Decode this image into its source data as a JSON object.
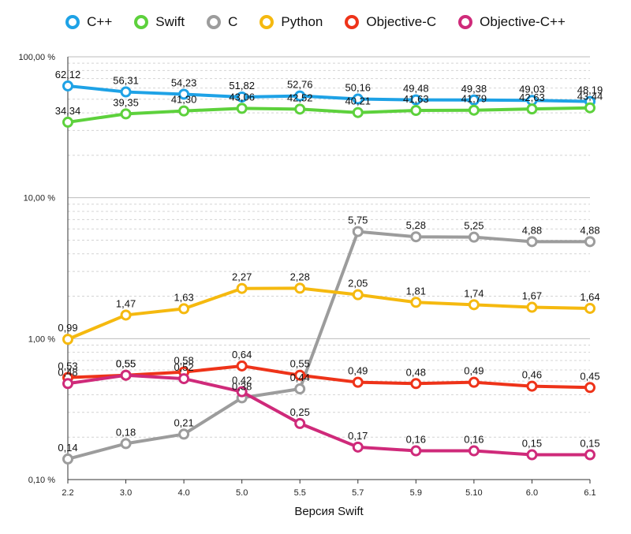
{
  "chart_data": {
    "type": "line",
    "title": "",
    "xlabel": "Версия Swift",
    "ylabel": "",
    "y_scale": "log",
    "ylim": [
      0.1,
      100
    ],
    "y_ticks": [
      {
        "value": 100,
        "label": "100,00 %"
      },
      {
        "value": 10,
        "label": "10,00 %"
      },
      {
        "value": 1,
        "label": "1,00 %"
      },
      {
        "value": 0.1,
        "label": "0,10 %"
      }
    ],
    "grid": true,
    "legend_position": "top",
    "categories": [
      "2.2",
      "3.0",
      "4.0",
      "5.0",
      "5.5",
      "5.7",
      "5.9",
      "5.10",
      "6.0",
      "6.1"
    ],
    "series": [
      {
        "name": "C++",
        "color": "#1ea2e6",
        "values": [
          62.12,
          56.31,
          54.23,
          51.82,
          52.76,
          50.16,
          49.48,
          49.38,
          49.03,
          48.19
        ],
        "labels": [
          "62,12",
          "56,31",
          "54,23",
          "51,82",
          "52,76",
          "50,16",
          "49,48",
          "49,38",
          "49,03",
          "48,19"
        ]
      },
      {
        "name": "Swift",
        "color": "#5dd13c",
        "values": [
          34.34,
          39.35,
          41.3,
          43.06,
          42.52,
          40.21,
          41.63,
          41.79,
          42.63,
          43.44
        ],
        "labels": [
          "34,34",
          "39,35",
          "41,30",
          "43,06",
          "42,52",
          "40,21",
          "41,63",
          "41,79",
          "42,63",
          "43,44"
        ]
      },
      {
        "name": "C",
        "color": "#9c9c9c",
        "values": [
          0.14,
          0.18,
          0.21,
          0.38,
          0.44,
          5.75,
          5.28,
          5.25,
          4.88,
          4.88
        ],
        "labels": [
          "0,14",
          "0,18",
          "0,21",
          "0,38",
          "0,44",
          "5,75",
          "5,28",
          "5,25",
          "4,88",
          "4,88"
        ]
      },
      {
        "name": "Python",
        "color": "#f5b90f",
        "values": [
          0.99,
          1.47,
          1.63,
          2.27,
          2.28,
          2.05,
          1.81,
          1.74,
          1.67,
          1.64
        ],
        "labels": [
          "0,99",
          "1,47",
          "1,63",
          "2,27",
          "2,28",
          "2,05",
          "1,81",
          "1,74",
          "1,67",
          "1,64"
        ]
      },
      {
        "name": "Objective-C",
        "color": "#ee3319",
        "values": [
          0.53,
          0.55,
          0.58,
          0.64,
          0.55,
          0.49,
          0.48,
          0.49,
          0.46,
          0.45
        ],
        "labels": [
          "0,53",
          "0,55",
          "0,58",
          "0,64",
          "0,55",
          "0,49",
          "0,48",
          "0,49",
          "0,46",
          "0,45"
        ]
      },
      {
        "name": "Objective-C++",
        "color": "#cf2a7a",
        "values": [
          0.48,
          0.55,
          0.52,
          0.42,
          0.25,
          0.17,
          0.16,
          0.16,
          0.15,
          0.15
        ],
        "labels": [
          "0,48",
          "0,55",
          "0,52",
          "0,42",
          "0,25",
          "0,17",
          "0,16",
          "0,16",
          "0,15",
          "0,15"
        ]
      }
    ]
  }
}
